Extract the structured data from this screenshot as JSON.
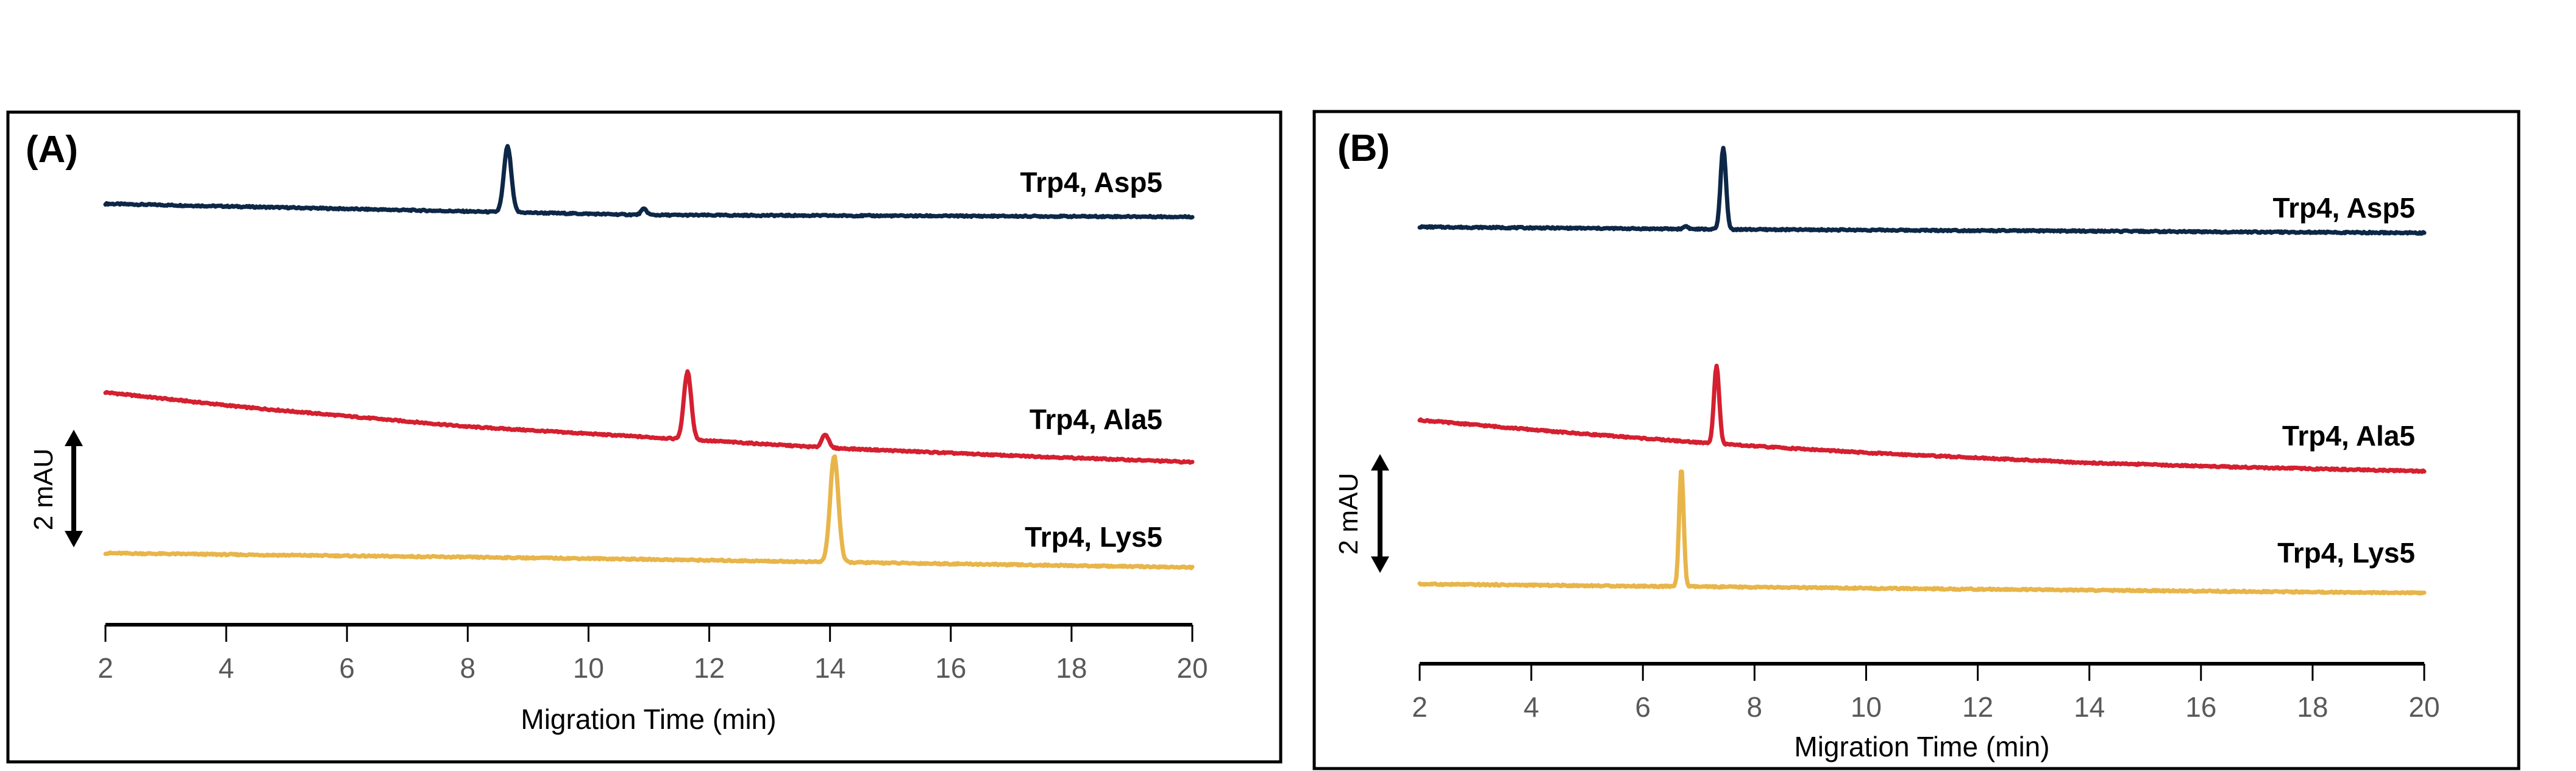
{
  "chart_data": [
    {
      "type": "line",
      "panel_label": "(A)",
      "xlabel": "Migration Time (min)",
      "ylabel": "",
      "xlim": [
        2,
        20
      ],
      "xticks": [
        2,
        4,
        6,
        8,
        10,
        12,
        14,
        16,
        18,
        20
      ],
      "grid": false,
      "legend": "inline-right",
      "scale_bar": {
        "label": "2 mAU",
        "value_mAU": 2
      },
      "y_units": "mAU (stacked, offset)",
      "series": [
        {
          "name": "Trp4, Asp5",
          "color": "#0d2747",
          "baseline": [
            [
              2,
              7.12
            ],
            [
              8.5,
              6.98
            ],
            [
              11,
              6.93
            ],
            [
              20,
              6.9
            ]
          ],
          "peaks": [
            {
              "time": 8.66,
              "height": 1.11,
              "width": 0.09
            },
            {
              "time": 10.92,
              "height": 0.1,
              "width": 0.07
            }
          ]
        },
        {
          "name": "Trp4, Ala5",
          "color": "#d42030",
          "baseline": [
            [
              2,
              3.93
            ],
            [
              4.29,
              3.68
            ],
            [
              8,
              3.35
            ],
            [
              11.36,
              3.15
            ],
            [
              14,
              2.99
            ],
            [
              17,
              2.86
            ],
            [
              20,
              2.75
            ]
          ],
          "peaks": [
            {
              "time": 11.64,
              "height": 1.14,
              "width": 0.09
            },
            {
              "time": 13.92,
              "height": 0.23,
              "width": 0.08
            }
          ]
        },
        {
          "name": "Trp4, Lys5",
          "color": "#e8b54a",
          "baseline": [
            [
              2,
              1.21
            ],
            [
              10,
              1.12
            ],
            [
              14,
              1.06
            ],
            [
              20,
              0.97
            ]
          ],
          "peaks": [
            {
              "time": 14.07,
              "height": 1.8,
              "width": 0.1
            }
          ]
        }
      ]
    },
    {
      "type": "line",
      "panel_label": "(B)",
      "xlabel": "Migration Time (min)",
      "ylabel": "",
      "xlim": [
        2,
        20
      ],
      "xticks": [
        2,
        4,
        6,
        8,
        10,
        12,
        14,
        16,
        18,
        20
      ],
      "grid": false,
      "legend": "inline-right",
      "scale_bar": {
        "label": "2 mAU",
        "value_mAU": 2
      },
      "y_units": "mAU (stacked, offset)",
      "series": [
        {
          "name": "Trp4, Asp5",
          "color": "#0d2747",
          "baseline": [
            [
              2,
              7.35
            ],
            [
              7.4,
              7.31
            ],
            [
              14,
              7.28
            ],
            [
              20,
              7.25
            ]
          ],
          "peaks": [
            {
              "time": 7.44,
              "height": 1.38,
              "width": 0.07
            },
            {
              "time": 6.77,
              "height": 0.05,
              "width": 0.06
            }
          ]
        },
        {
          "name": "Trp4, Ala5",
          "color": "#d42030",
          "baseline": [
            [
              2,
              4.1
            ],
            [
              4.5,
              3.9
            ],
            [
              7.32,
              3.7
            ],
            [
              10,
              3.55
            ],
            [
              14,
              3.38
            ],
            [
              17,
              3.3
            ],
            [
              20,
              3.24
            ]
          ],
          "peaks": [
            {
              "time": 7.32,
              "height": 1.31,
              "width": 0.07
            }
          ]
        },
        {
          "name": "Trp4, Lys5",
          "color": "#e8b54a",
          "baseline": [
            [
              2,
              1.34
            ],
            [
              10,
              1.27
            ],
            [
              20,
              1.19
            ]
          ],
          "peaks": [
            {
              "time": 6.69,
              "height": 1.98,
              "width": 0.06
            }
          ]
        }
      ]
    }
  ]
}
